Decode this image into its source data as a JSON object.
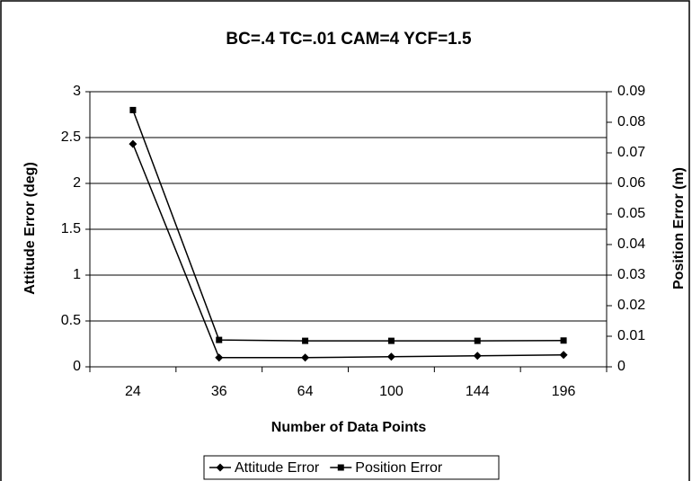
{
  "chart_data": {
    "type": "line",
    "title": "BC=.4  TC=.01   CAM=4   YCF=1.5",
    "x_label": "Number of Data Points",
    "y_label": "Attitude Error (deg)",
    "y2_label": "Position Error (m)",
    "categories": [
      "24",
      "36",
      "64",
      "100",
      "144",
      "196"
    ],
    "series": [
      {
        "name": "Attitude Error",
        "color": "#000000",
        "marker": "diamond",
        "values": [
          2.43,
          0.1,
          0.1,
          0.11,
          0.12,
          0.13
        ]
      },
      {
        "name": "Position Error",
        "color": "#000000",
        "marker": "square",
        "axis": "y2",
        "values": [
          0.084,
          0.0088,
          0.0085,
          0.0085,
          0.0085,
          0.0086
        ]
      }
    ],
    "ylim": [
      0,
      3
    ],
    "yticks": [
      0,
      0.5,
      1,
      1.5,
      2,
      2.5,
      3
    ],
    "y2lim": [
      0,
      0.09
    ],
    "y2ticks": [
      0,
      0.01,
      0.02,
      0.03,
      0.04,
      0.05,
      0.06,
      0.07,
      0.08,
      0.09
    ],
    "grid": true,
    "legend": "bottom"
  }
}
